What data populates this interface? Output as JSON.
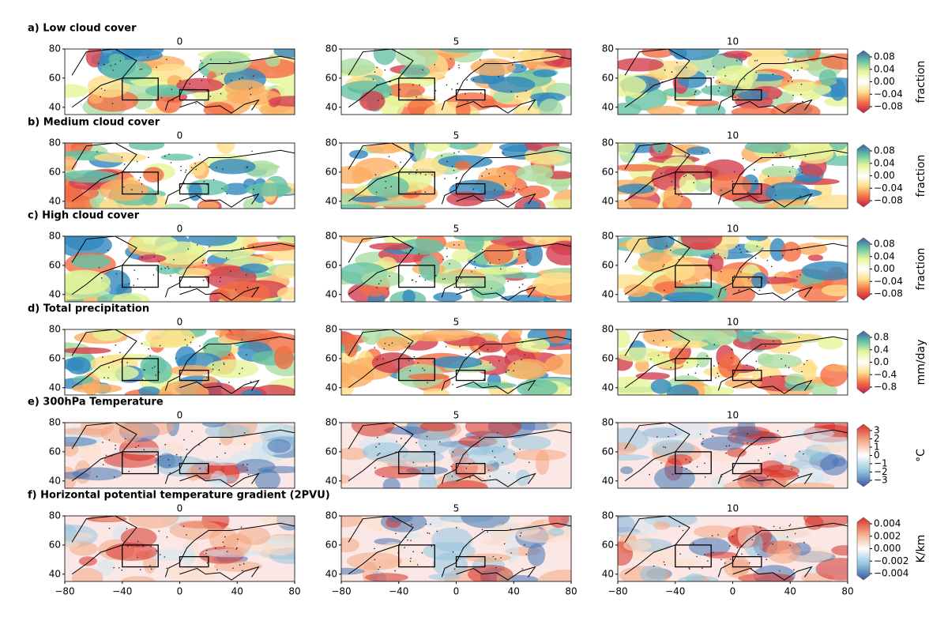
{
  "columns": [
    "0",
    "5",
    "10"
  ],
  "y_ticks": [
    "80",
    "60",
    "40"
  ],
  "x_ticks": [
    "−80",
    "−40",
    "0",
    "40",
    "80"
  ],
  "rows": [
    {
      "title": "a)  Low cloud cover",
      "colorbar": {
        "ticks": [
          "0.08",
          "0.04",
          "0.00",
          "−0.04",
          "−0.08"
        ],
        "unit": "fraction"
      }
    },
    {
      "title": "b)  Medium cloud cover",
      "colorbar": {
        "ticks": [
          "0.08",
          "0.04",
          "0.00",
          "−0.04",
          "−0.08"
        ],
        "unit": "fraction"
      }
    },
    {
      "title": "c)  High cloud cover",
      "colorbar": {
        "ticks": [
          "0.08",
          "0.04",
          "0.00",
          "−0.04",
          "−0.08"
        ],
        "unit": "fraction"
      }
    },
    {
      "title": "d)  Total precipitation",
      "colorbar": {
        "ticks": [
          "0.8",
          "0.4",
          "0.0",
          "−0.4",
          "−0.8"
        ],
        "unit": "mm/day"
      }
    },
    {
      "title": "e)  300hPa Temperature",
      "colorbar": {
        "ticks": [
          "3",
          "2",
          "1",
          "0",
          "−1",
          "−2",
          "−3"
        ],
        "unit": "°C"
      }
    },
    {
      "title": "f)  Horizontal potential temperature gradient (2PVU)",
      "colorbar": {
        "ticks": [
          "0.004",
          "0.002",
          "0.000",
          "−0.002",
          "−0.004"
        ],
        "unit": "K/km"
      }
    }
  ]
}
